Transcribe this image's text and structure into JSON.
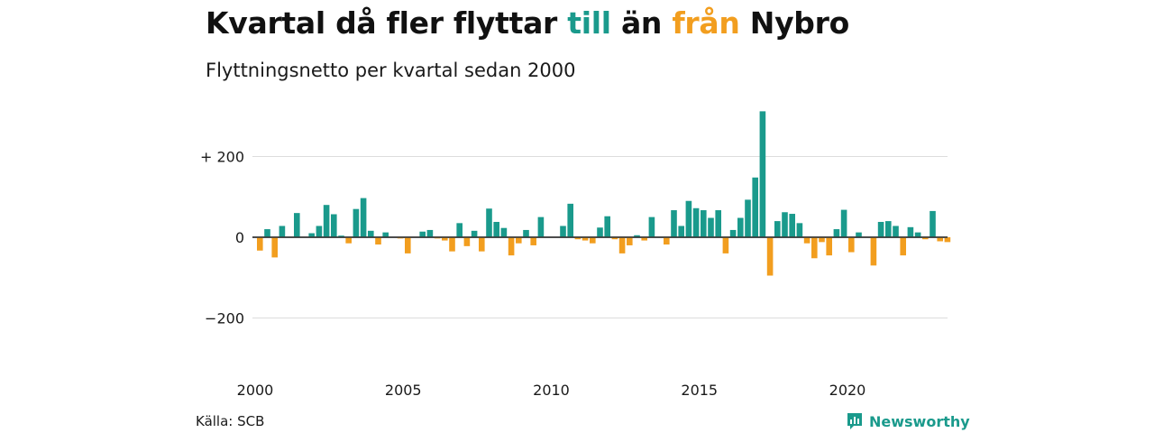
{
  "header": {
    "title_part1": "Kvartal då fler flyttar",
    "title_in": "till",
    "title_part2": "än",
    "title_out": "från",
    "title_part3": "Nybro",
    "subtitle": "Flyttningsnetto per kvartal sedan 2000"
  },
  "footer": {
    "source": "Källa: SCB",
    "brand": "Newsworthy",
    "brand_icon": "newsworthy-chart-icon"
  },
  "colors": {
    "positive": "#1a9a8c",
    "negative": "#f29e1f",
    "grid": "#dddddd",
    "zero_line": "#333333",
    "text": "#1a1a1a"
  },
  "chart_data": {
    "type": "bar",
    "title": "Kvartal då fler flyttar till än från Nybro",
    "subtitle": "Flyttningsnetto per kvartal sedan 2000",
    "x_start": "2000 Q1",
    "x_ticks": [
      "2000",
      "2005",
      "2010",
      "2015",
      "2020"
    ],
    "y_ticks": [
      {
        "value": 200,
        "label": "+ 200"
      },
      {
        "value": 0,
        "label": "0"
      },
      {
        "value": -200,
        "label": "−200"
      }
    ],
    "ylim": [
      -300,
      315
    ],
    "grid": true,
    "legend": "none (colors explained in title)",
    "values": [
      -33,
      20,
      -50,
      28,
      0,
      60,
      0,
      10,
      28,
      80,
      57,
      4,
      -15,
      70,
      97,
      16,
      -18,
      12,
      0,
      -3,
      -40,
      0,
      14,
      18,
      -3,
      -8,
      -35,
      35,
      -22,
      16,
      -35,
      71,
      38,
      23,
      -45,
      -15,
      18,
      -20,
      50,
      0,
      0,
      28,
      83,
      -5,
      -8,
      -15,
      24,
      52,
      -5,
      -40,
      -20,
      5,
      -8,
      50,
      0,
      -18,
      67,
      28,
      90,
      72,
      67,
      48,
      67,
      -40,
      18,
      48,
      93,
      148,
      312,
      -95,
      40,
      62,
      58,
      35,
      -15,
      -52,
      -12,
      -45,
      20,
      68,
      -37,
      12,
      0,
      -70,
      38,
      40,
      28,
      -45,
      25,
      12,
      -5,
      65,
      -10,
      -12
    ]
  }
}
